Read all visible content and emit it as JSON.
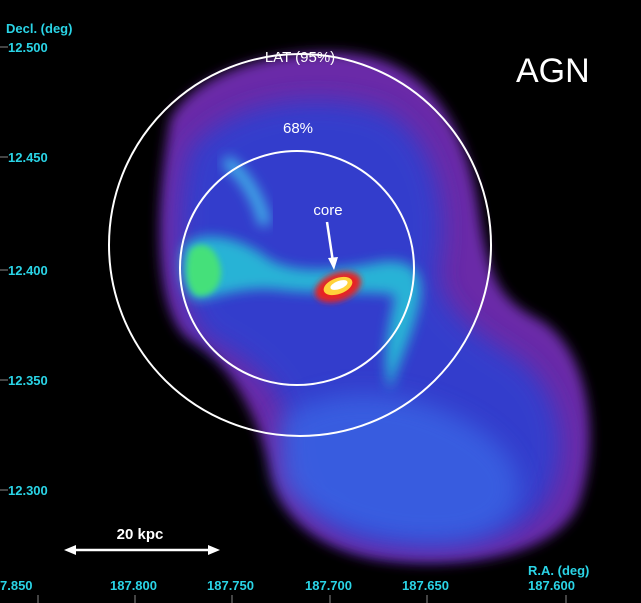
{
  "figure": {
    "label": "AGN",
    "y_axis": {
      "title": "Decl. (deg)",
      "ticks": [
        "12.500",
        "12.450",
        "12.400",
        "12.350",
        "12.300"
      ]
    },
    "x_axis": {
      "title": "R.A. (deg)",
      "ticks": [
        "7.850",
        "187.800",
        "187.750",
        "187.700",
        "187.650",
        "187.600"
      ]
    },
    "annotations": {
      "outer_circle": "LAT (95%)",
      "inner_circle": "68%",
      "core": "core",
      "scale_bar": "20 kpc"
    }
  }
}
